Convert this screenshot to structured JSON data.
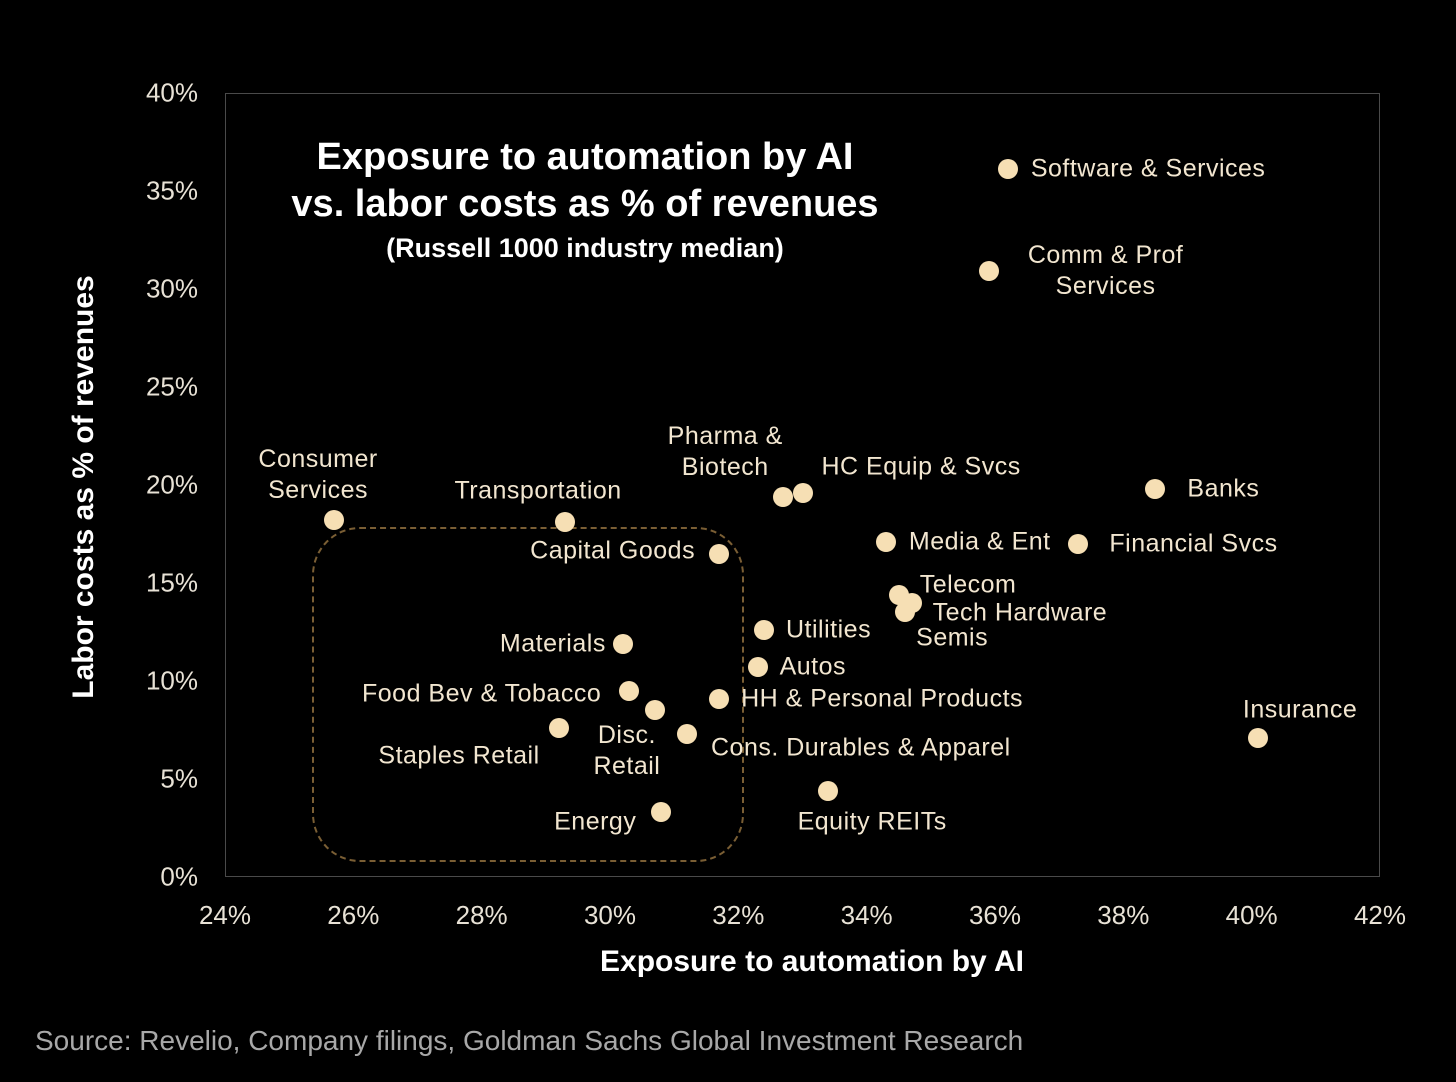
{
  "chart_data": {
    "type": "scatter",
    "title": "Exposure to automation by AI\nvs. labor costs as % of revenues",
    "subtitle": "(Russell 1000 industry median)",
    "xlabel": "Exposure to automation by AI",
    "ylabel": "Labor costs as % of revenues",
    "xlim": [
      24,
      42
    ],
    "ylim": [
      0,
      40
    ],
    "xticks": [
      "24%",
      "26%",
      "28%",
      "30%",
      "32%",
      "34%",
      "36%",
      "38%",
      "40%",
      "42%"
    ],
    "yticks": [
      "0%",
      "5%",
      "10%",
      "15%",
      "20%",
      "25%",
      "30%",
      "35%",
      "40%"
    ],
    "grid": false,
    "highlight_region": {
      "x": [
        25.4,
        32.1
      ],
      "y": [
        0.8,
        17.9
      ],
      "style": "dashed"
    },
    "points": [
      {
        "label": "Software & Services",
        "x": 36.2,
        "y": 36.1
      },
      {
        "label": "Comm & Prof\nServices",
        "x": 35.9,
        "y": 30.9
      },
      {
        "label": "Consumer\nServices",
        "x": 25.7,
        "y": 18.2
      },
      {
        "label": "Transportation",
        "x": 29.3,
        "y": 18.1
      },
      {
        "label": "Pharma &\nBiotech",
        "x": 32.7,
        "y": 19.4
      },
      {
        "label": "HC Equip & Svcs",
        "x": 33.0,
        "y": 19.6
      },
      {
        "label": "Banks",
        "x": 38.5,
        "y": 19.8
      },
      {
        "label": "Capital Goods",
        "x": 31.7,
        "y": 16.5
      },
      {
        "label": "Media & Ent",
        "x": 34.3,
        "y": 17.1
      },
      {
        "label": "Financial Svcs",
        "x": 37.3,
        "y": 17.0
      },
      {
        "label": "Telecom",
        "x": 34.5,
        "y": 14.4
      },
      {
        "label": "Tech Hardware",
        "x": 34.7,
        "y": 14.0
      },
      {
        "label": "Semis",
        "x": 34.6,
        "y": 13.5
      },
      {
        "label": "Utilities",
        "x": 32.4,
        "y": 12.6
      },
      {
        "label": "Materials",
        "x": 30.2,
        "y": 11.9
      },
      {
        "label": "Autos",
        "x": 32.3,
        "y": 10.7
      },
      {
        "label": "Food Bev & Tobacco",
        "x": 30.3,
        "y": 9.5
      },
      {
        "label": "Disc.\nRetail",
        "x": 30.7,
        "y": 8.5
      },
      {
        "label": "HH & Personal Products",
        "x": 31.7,
        "y": 9.1
      },
      {
        "label": "Staples Retail",
        "x": 29.2,
        "y": 7.6
      },
      {
        "label": "Cons. Durables & Apparel",
        "x": 31.2,
        "y": 7.3
      },
      {
        "label": "Insurance",
        "x": 40.1,
        "y": 7.1
      },
      {
        "label": "Equity REITs",
        "x": 33.4,
        "y": 4.4
      },
      {
        "label": "Energy",
        "x": 30.8,
        "y": 3.3
      }
    ],
    "colors": {
      "point": "#f6dfb4",
      "region": "#7a5e34",
      "text": "#f2e6d0"
    }
  },
  "title_lines": [
    "Exposure to automation by AI",
    "vs. labor costs as % of revenues",
    "(Russell 1000 industry median)"
  ],
  "source": "Source: Revelio, Company filings, Goldman Sachs Global Investment Research"
}
